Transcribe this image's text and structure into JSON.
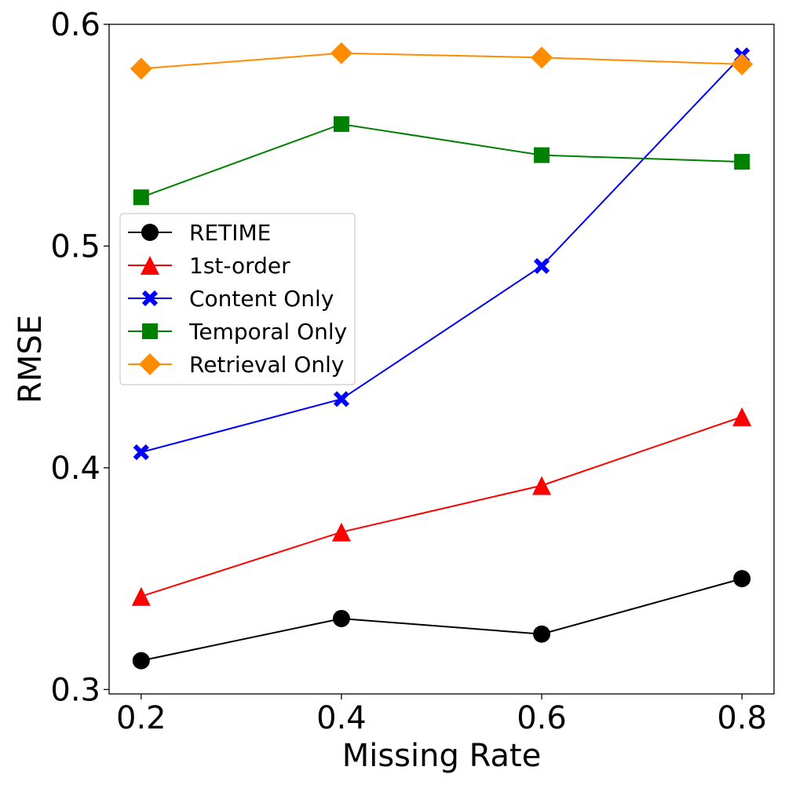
{
  "chart_data": {
    "type": "line",
    "title": "",
    "xlabel": "Missing Rate",
    "ylabel": "RMSE",
    "x": [
      0.2,
      0.4,
      0.6,
      0.8
    ],
    "xlim": [
      0.168,
      0.832
    ],
    "ylim": [
      0.298,
      0.6
    ],
    "xticks": [
      0.2,
      0.4,
      0.6,
      0.8
    ],
    "xtick_labels": [
      "0.2",
      "0.4",
      "0.6",
      "0.8"
    ],
    "yticks": [
      0.3,
      0.4,
      0.5,
      0.6
    ],
    "ytick_labels": [
      "0.3",
      "0.4",
      "0.5",
      "0.6"
    ],
    "legend_position": "center-left",
    "grid": false,
    "series": [
      {
        "name": "RETIME",
        "color": "#000000",
        "marker": "circle",
        "values": [
          0.313,
          0.332,
          0.325,
          0.35
        ]
      },
      {
        "name": "1st-order",
        "color": "#ff0000",
        "marker": "triangle",
        "values": [
          0.342,
          0.371,
          0.392,
          0.423
        ]
      },
      {
        "name": "Content Only",
        "color": "#0000ff",
        "marker": "x",
        "values": [
          0.407,
          0.431,
          0.491,
          0.586
        ]
      },
      {
        "name": "Temporal Only",
        "color": "#008000",
        "marker": "square",
        "values": [
          0.522,
          0.555,
          0.541,
          0.538
        ]
      },
      {
        "name": "Retrieval Only",
        "color": "#ff8c00",
        "marker": "diamond",
        "values": [
          0.58,
          0.587,
          0.585,
          0.582
        ]
      }
    ]
  }
}
